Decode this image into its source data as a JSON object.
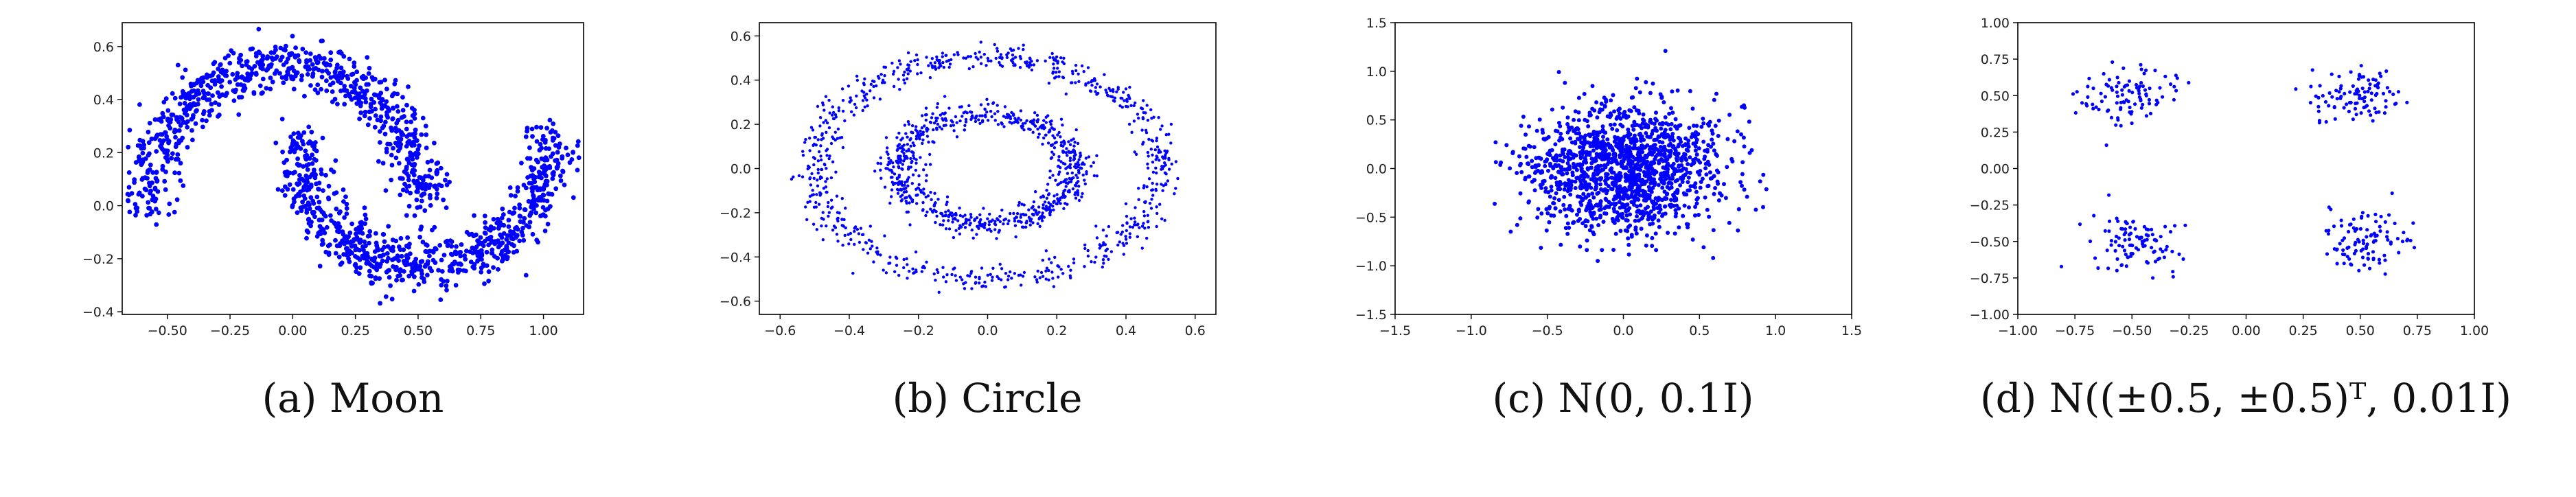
{
  "chart_data": [
    {
      "type": "scatter",
      "caption": "(a) Moon",
      "xlim": [
        -0.68,
        1.16
      ],
      "ylim": [
        -0.41,
        0.69
      ],
      "xticks": [
        -0.5,
        -0.25,
        0.0,
        0.25,
        0.5,
        0.75,
        1.0
      ],
      "xtick_labels": [
        "−0.50",
        "−0.25",
        "0.00",
        "0.25",
        "0.50",
        "0.75",
        "1.00"
      ],
      "yticks": [
        -0.4,
        -0.2,
        0.0,
        0.2,
        0.4,
        0.6
      ],
      "ytick_labels": [
        "−0.4",
        "−0.2",
        "0.0",
        "0.2",
        "0.4",
        "0.6"
      ],
      "grid": false,
      "color": "#0000ff",
      "series": [
        {
          "shape": "two-moons",
          "points": [
            [
              -0.5,
              0.0
            ],
            [
              -0.45,
              0.2
            ],
            [
              -0.35,
              0.35
            ],
            [
              -0.2,
              0.45
            ],
            [
              0.0,
              0.52
            ],
            [
              0.2,
              0.47
            ],
            [
              0.35,
              0.35
            ],
            [
              0.45,
              0.2
            ],
            [
              0.5,
              0.05
            ],
            [
              0.0,
              0.45
            ],
            [
              0.5,
              -0.25
            ],
            [
              0.75,
              -0.18
            ],
            [
              0.95,
              0.0
            ],
            [
              1.0,
              0.25
            ]
          ]
        }
      ]
    },
    {
      "type": "scatter",
      "caption": "(b) Circle",
      "xlim": [
        -0.66,
        0.66
      ],
      "ylim": [
        -0.66,
        0.66
      ],
      "xticks": [
        -0.6,
        -0.4,
        -0.2,
        0.0,
        0.2,
        0.4,
        0.6
      ],
      "xtick_labels": [
        "−0.6",
        "−0.4",
        "−0.2",
        "0.0",
        "0.2",
        "0.4",
        "0.6"
      ],
      "yticks": [
        -0.6,
        -0.4,
        -0.2,
        0.0,
        0.2,
        0.4,
        0.6
      ],
      "ytick_labels": [
        "−0.6",
        "−0.4",
        "−0.2",
        "0.0",
        "0.2",
        "0.4",
        "0.6"
      ],
      "grid": false,
      "color": "#0000ff",
      "series": [
        {
          "shape": "ring",
          "radius": 0.5,
          "noise": 0.03
        },
        {
          "shape": "ring",
          "radius": 0.25,
          "noise": 0.03
        }
      ]
    },
    {
      "type": "scatter",
      "caption": "(c) N(0, 0.1I)",
      "xlim": [
        -1.5,
        1.5
      ],
      "ylim": [
        -1.5,
        1.5
      ],
      "xticks": [
        -1.5,
        -1.0,
        -0.5,
        0.0,
        0.5,
        1.0,
        1.5
      ],
      "xtick_labels": [
        "−1.5",
        "−1.0",
        "−0.5",
        "0.0",
        "0.5",
        "1.0",
        "1.5"
      ],
      "yticks": [
        -1.5,
        -1.0,
        -0.5,
        0.0,
        0.5,
        1.0,
        1.5
      ],
      "ytick_labels": [
        "−1.5",
        "−1.0",
        "−0.5",
        "0.0",
        "0.5",
        "1.0",
        "1.5"
      ],
      "grid": false,
      "color": "#0000ff",
      "series": [
        {
          "shape": "gaussian",
          "mean": [
            0.0,
            0.0
          ],
          "variance": 0.1
        }
      ]
    },
    {
      "type": "scatter",
      "caption": "(d) N((±0.5, ±0.5)ᵀ, 0.01I)",
      "xlim": [
        -1.0,
        1.0
      ],
      "ylim": [
        -1.0,
        1.0
      ],
      "xticks": [
        -1.0,
        -0.75,
        -0.5,
        -0.25,
        0.0,
        0.25,
        0.5,
        0.75,
        1.0
      ],
      "xtick_labels": [
        "−1.00",
        "−0.75",
        "−0.50",
        "−0.25",
        "0.00",
        "0.25",
        "0.50",
        "0.75",
        "1.00"
      ],
      "yticks": [
        -1.0,
        -0.75,
        -0.5,
        -0.25,
        0.0,
        0.25,
        0.5,
        0.75,
        1.0
      ],
      "ytick_labels": [
        "−1.00",
        "−0.75",
        "−0.50",
        "−0.25",
        "0.00",
        "0.25",
        "0.50",
        "0.75",
        "1.00"
      ],
      "grid": false,
      "color": "#0000ff",
      "series": [
        {
          "shape": "gaussian",
          "mean": [
            0.5,
            0.5
          ],
          "variance": 0.01
        },
        {
          "shape": "gaussian",
          "mean": [
            -0.5,
            0.5
          ],
          "variance": 0.01
        },
        {
          "shape": "gaussian",
          "mean": [
            0.5,
            -0.5
          ],
          "variance": 0.01
        },
        {
          "shape": "gaussian",
          "mean": [
            -0.5,
            -0.5
          ],
          "variance": 0.01
        }
      ]
    }
  ]
}
